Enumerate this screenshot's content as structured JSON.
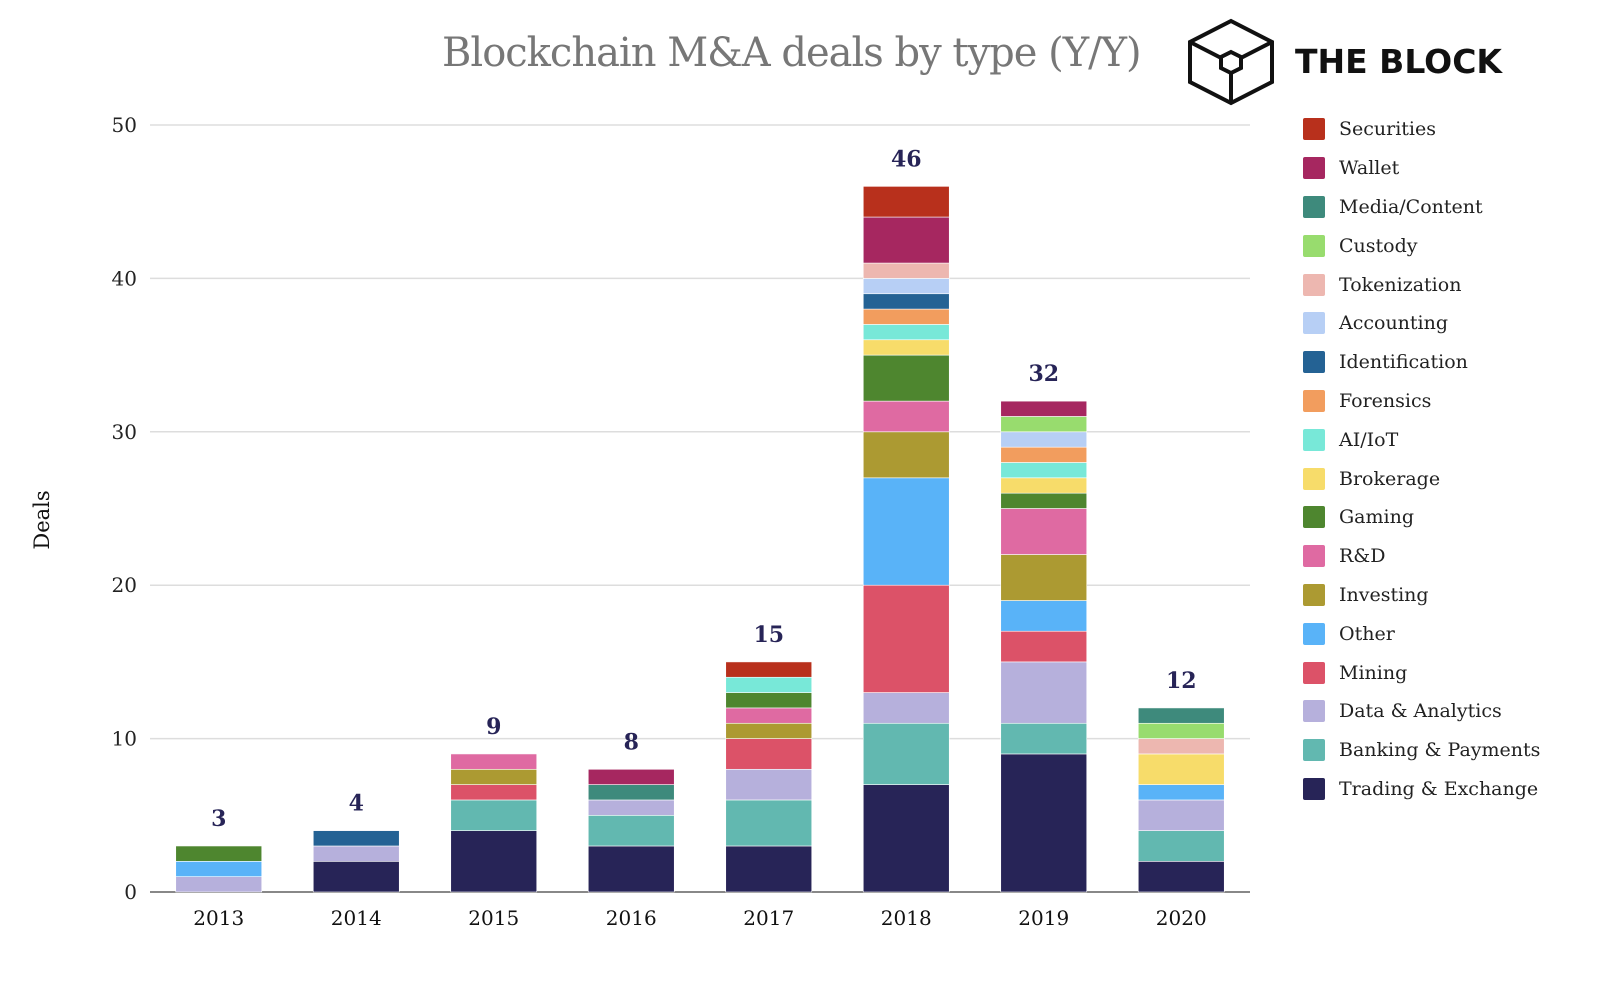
{
  "brand": "THE BLOCK",
  "chart_data": {
    "type": "bar",
    "stacked": true,
    "title": "Blockchain M&A deals by type (Y/Y)",
    "xlabel": "",
    "ylabel": "Deals",
    "ylim": [
      0,
      50
    ],
    "yticks": [
      0,
      10,
      20,
      30,
      40,
      50
    ],
    "grid": true,
    "legend_position": "right",
    "categories": [
      "2013",
      "2014",
      "2015",
      "2016",
      "2017",
      "2018",
      "2019",
      "2020"
    ],
    "totals": [
      3,
      4,
      9,
      8,
      15,
      46,
      32,
      12
    ],
    "series": [
      {
        "name": "Trading & Exchange",
        "color": "#272457",
        "values": [
          0,
          2,
          4,
          3,
          3,
          7,
          9,
          2
        ]
      },
      {
        "name": "Banking & Payments",
        "color": "#62b8b0",
        "values": [
          0,
          0,
          2,
          2,
          3,
          4,
          2,
          2
        ]
      },
      {
        "name": "Data & Analytics",
        "color": "#b6b0dc",
        "values": [
          1,
          1,
          0,
          1,
          2,
          2,
          4,
          2
        ]
      },
      {
        "name": "Mining",
        "color": "#dc5268",
        "values": [
          0,
          0,
          1,
          0,
          2,
          7,
          2,
          0
        ]
      },
      {
        "name": "Other",
        "color": "#59b3f8",
        "values": [
          1,
          0,
          0,
          0,
          0,
          7,
          2,
          1
        ]
      },
      {
        "name": "Investing",
        "color": "#ac9a32",
        "values": [
          0,
          0,
          1,
          0,
          1,
          3,
          3,
          0
        ]
      },
      {
        "name": "R&D",
        "color": "#df6aa2",
        "values": [
          0,
          0,
          1,
          0,
          1,
          2,
          3,
          0
        ]
      },
      {
        "name": "Gaming",
        "color": "#4e862f",
        "values": [
          1,
          0,
          0,
          0,
          1,
          3,
          1,
          0
        ]
      },
      {
        "name": "Brokerage",
        "color": "#f7dc6a",
        "values": [
          0,
          0,
          0,
          0,
          0,
          1,
          1,
          2
        ]
      },
      {
        "name": "AI/IoT",
        "color": "#78e8d8",
        "values": [
          0,
          0,
          0,
          0,
          1,
          1,
          1,
          0
        ]
      },
      {
        "name": "Forensics",
        "color": "#f29d5e",
        "values": [
          0,
          0,
          0,
          0,
          0,
          1,
          1,
          0
        ]
      },
      {
        "name": "Identification",
        "color": "#246294",
        "values": [
          0,
          1,
          0,
          0,
          0,
          1,
          0,
          0
        ]
      },
      {
        "name": "Accounting",
        "color": "#b7cff5",
        "values": [
          0,
          0,
          0,
          0,
          0,
          1,
          1,
          0
        ]
      },
      {
        "name": "Tokenization",
        "color": "#edb7b0",
        "values": [
          0,
          0,
          0,
          0,
          0,
          1,
          0,
          1
        ]
      },
      {
        "name": "Custody",
        "color": "#98dc6e",
        "values": [
          0,
          0,
          0,
          0,
          0,
          0,
          1,
          1
        ]
      },
      {
        "name": "Media/Content",
        "color": "#3e8a7c",
        "values": [
          0,
          0,
          0,
          1,
          0,
          0,
          0,
          1
        ]
      },
      {
        "name": "Wallet",
        "color": "#a62760",
        "values": [
          0,
          0,
          0,
          1,
          0,
          3,
          1,
          0
        ]
      },
      {
        "name": "Securities",
        "color": "#b8301c",
        "values": [
          0,
          0,
          0,
          0,
          1,
          2,
          0,
          0
        ]
      }
    ]
  }
}
